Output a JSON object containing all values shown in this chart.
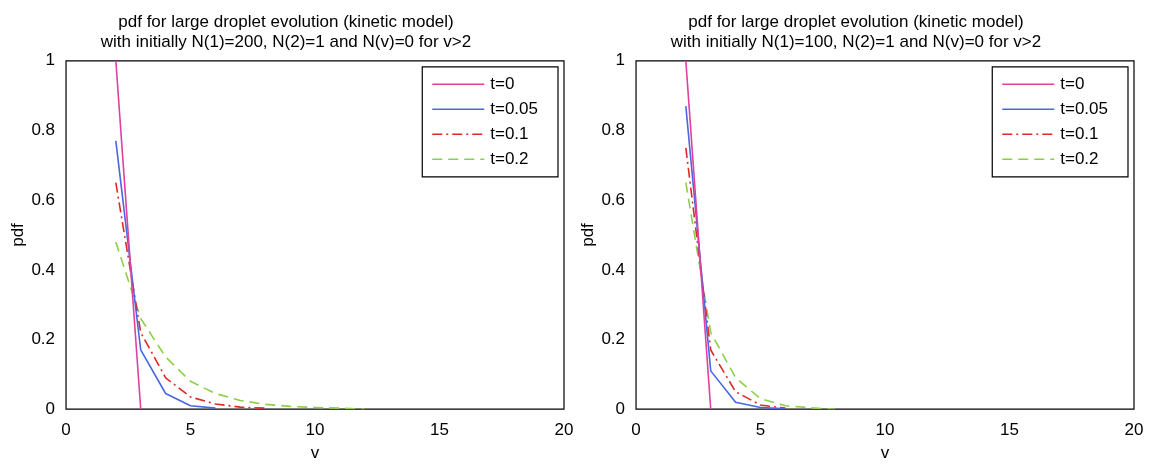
{
  "chart_data": [
    {
      "type": "line",
      "title": "pdf for large droplet evolution (kinetic model)",
      "subtitle": "with initially N(1)=200, N(2)=1 and N(v)=0 for v>2",
      "xlabel": "v",
      "ylabel": "pdf",
      "x": [
        2,
        3,
        4,
        5,
        6,
        7,
        8,
        9,
        10,
        11,
        12
      ],
      "xlim": [
        0,
        20
      ],
      "xticks": [
        0,
        5,
        10,
        15,
        20
      ],
      "ylim": [
        0,
        1
      ],
      "yticks": [
        0,
        0.2,
        0.4,
        0.6,
        0.8,
        1
      ],
      "grid": false,
      "legend": "top right",
      "marker": "none",
      "series": [
        {
          "name": "t=0",
          "color": "#e040a0",
          "line_style": "solid",
          "values": [
            1,
            0,
            null,
            null,
            null,
            null,
            null,
            null,
            null,
            null,
            null
          ]
        },
        {
          "name": "t=0.05",
          "color": "#4a66e0",
          "line_style": "solid",
          "values": [
            0.77,
            0.17,
            0.045,
            0.01,
            0.003,
            null,
            null,
            null,
            null,
            null,
            null
          ]
        },
        {
          "name": "t=0.1",
          "color": "#e02828",
          "line_style": "dotted",
          "values": [
            0.65,
            0.22,
            0.09,
            0.035,
            0.015,
            0.006,
            0.003,
            null,
            null,
            null,
            null
          ]
        },
        {
          "name": "t=0.2",
          "color": "#8cd04a",
          "line_style": "dashed",
          "values": [
            0.48,
            0.26,
            0.15,
            0.08,
            0.045,
            0.025,
            0.014,
            0.008,
            0.005,
            0.003,
            0
          ]
        }
      ]
    },
    {
      "type": "line",
      "title": "pdf for large droplet evolution (kinetic model)",
      "subtitle": "with initially N(1)=100, N(2)=1 and N(v)=0 for v>2",
      "xlabel": "v",
      "ylabel": "pdf",
      "x": [
        2,
        3,
        4,
        5,
        6,
        7,
        8
      ],
      "xlim": [
        0,
        20
      ],
      "xticks": [
        0,
        5,
        10,
        15,
        20
      ],
      "ylim": [
        0,
        1
      ],
      "yticks": [
        0,
        0.2,
        0.4,
        0.6,
        0.8,
        1
      ],
      "grid": false,
      "legend": "top right",
      "marker": "none",
      "series": [
        {
          "name": "t=0",
          "color": "#e040a0",
          "line_style": "solid",
          "values": [
            1,
            0,
            null,
            null,
            null,
            null,
            null
          ]
        },
        {
          "name": "t=0.05",
          "color": "#4a66e0",
          "line_style": "solid",
          "values": [
            0.87,
            0.11,
            0.02,
            0.005,
            0.001,
            null,
            null
          ]
        },
        {
          "name": "t=0.1",
          "color": "#e02828",
          "line_style": "dotted",
          "values": [
            0.75,
            0.17,
            0.05,
            0.012,
            0.003,
            null,
            null
          ]
        },
        {
          "name": "t=0.2",
          "color": "#8cd04a",
          "line_style": "dashed",
          "values": [
            0.65,
            0.22,
            0.09,
            0.03,
            0.01,
            0.004,
            0
          ]
        }
      ]
    }
  ]
}
